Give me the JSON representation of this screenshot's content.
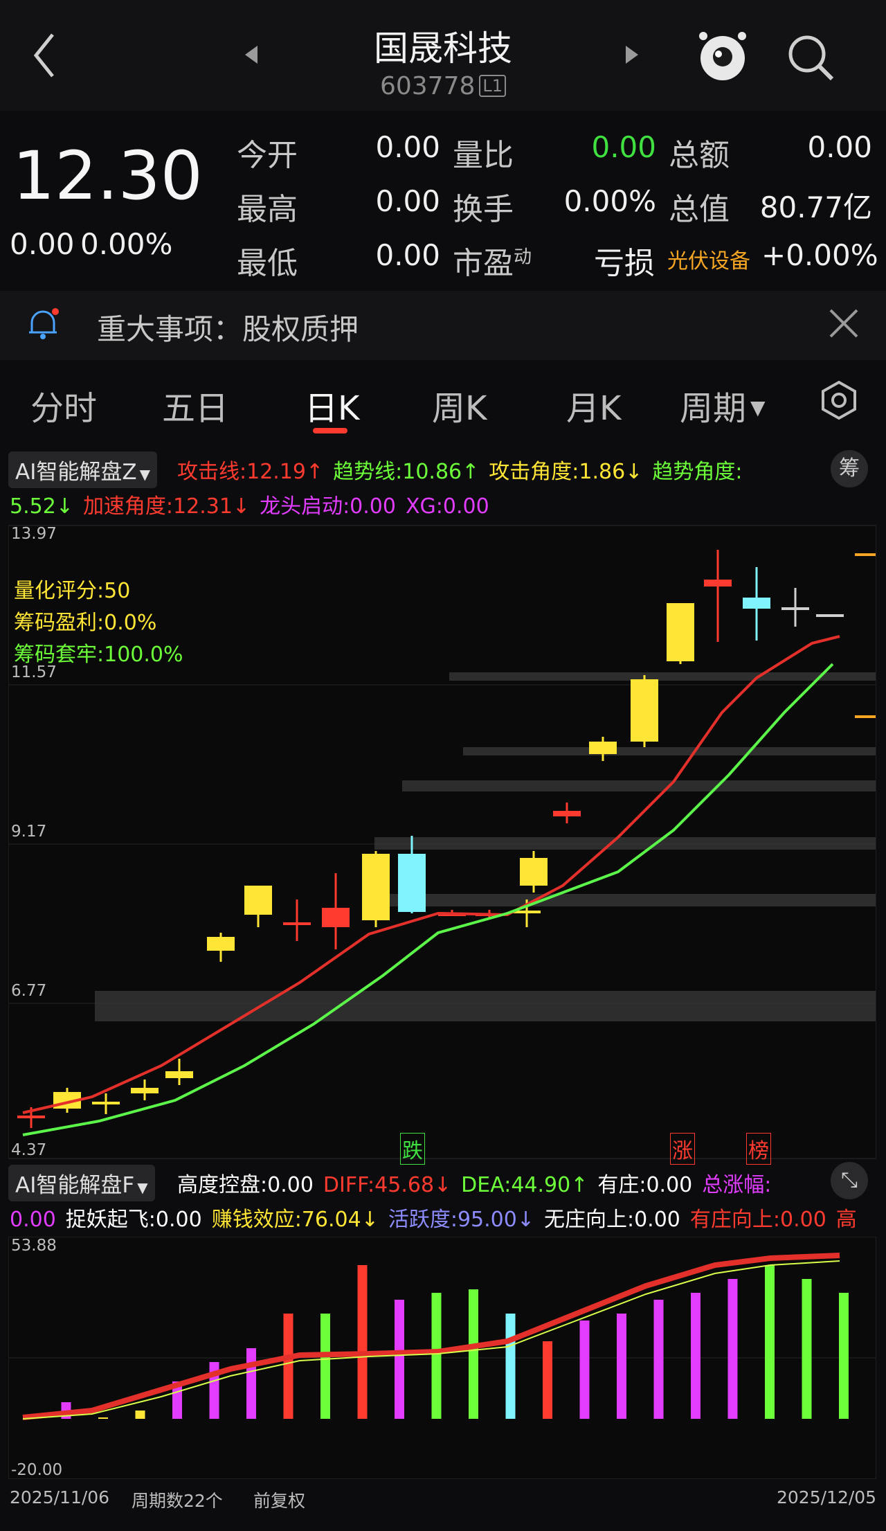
{
  "header": {
    "title": "国晟科技",
    "code": "603778",
    "level_badge": "L1"
  },
  "quote": {
    "price": "12.30",
    "change": "0.00",
    "change_pct": "0.00%",
    "rows": [
      {
        "l1": "今开",
        "v1": "0.00",
        "l2": "量比",
        "v2": "0.00",
        "l3": "总额",
        "v3": "0.00"
      },
      {
        "l1": "最高",
        "v1": "0.00",
        "l2": "换手",
        "v2": "0.00%",
        "l3": "总值",
        "v3": "80.77亿"
      },
      {
        "l1": "最低",
        "v1": "0.00",
        "l2": "市盈",
        "v2": "",
        "l3": "亏损",
        "v3": "+0.00%"
      }
    ],
    "pe_sup": "动",
    "sector": "光伏设备"
  },
  "notice": {
    "text": "重大事项：股权质押"
  },
  "tabs": [
    "分时",
    "五日",
    "日K",
    "周K",
    "月K",
    "周期"
  ],
  "main_indicator": {
    "name": "AI智能解盘Z",
    "line1": [
      {
        "t": "攻击线:",
        "v": "12.19",
        "arrow": "↑",
        "c": "#ff3b30"
      },
      {
        "t": "趋势线:",
        "v": "10.86",
        "arrow": "↑",
        "c": "#6cff3a"
      },
      {
        "t": "攻击角度:",
        "v": "1.86",
        "arrow": "↓",
        "c": "#ffe535"
      },
      {
        "t": "趋势角度:",
        "v": "",
        "arrow": "",
        "c": "#6cff3a"
      }
    ],
    "line2": [
      {
        "t": "",
        "v": "5.52",
        "arrow": "↓",
        "c": "#6cff3a"
      },
      {
        "t": "加速角度:",
        "v": "12.31",
        "arrow": "↓",
        "c": "#ff3b30"
      },
      {
        "t": "龙头启动:",
        "v": "0.00",
        "arrow": "",
        "c": "#e23dff"
      },
      {
        "t": "XG:",
        "v": "0.00",
        "arrow": "",
        "c": "#e23dff"
      }
    ],
    "chip_button": "筹"
  },
  "kline": {
    "y_labels": [
      "13.97",
      "11.57",
      "9.17",
      "6.77",
      "4.37"
    ],
    "score_lines": [
      {
        "text": "量化评分:50",
        "c": "#ffe535"
      },
      {
        "text": "筹码盈利:0.0%",
        "c": "#ffe535"
      },
      {
        "text": "筹码套牢:100.0%",
        "c": "#6cff3a"
      }
    ],
    "bottom_tags": [
      "跌",
      "涨",
      "榜"
    ]
  },
  "sub_indicator": {
    "name": "AI智能解盘F",
    "line1": [
      {
        "t": "高度控盘:",
        "v": "0.00",
        "arrow": "",
        "c": "#ffffff"
      },
      {
        "t": "DIFF:",
        "v": "45.68",
        "arrow": "↓",
        "c": "#ff3b30"
      },
      {
        "t": "DEA:",
        "v": "44.90",
        "arrow": "↑",
        "c": "#6cff3a"
      },
      {
        "t": "有庄:",
        "v": "0.00",
        "arrow": "",
        "c": "#ffffff"
      },
      {
        "t": "总涨幅:",
        "v": "",
        "arrow": "",
        "c": "#e23dff"
      }
    ],
    "line2": [
      {
        "t": "",
        "v": "0.00",
        "arrow": "",
        "c": "#e23dff"
      },
      {
        "t": "捉妖起飞:",
        "v": "0.00",
        "arrow": "",
        "c": "#ffffff"
      },
      {
        "t": "赚钱效应:",
        "v": "76.04",
        "arrow": "↓",
        "c": "#ffe535"
      },
      {
        "t": "活跃度:",
        "v": "95.00",
        "arrow": "↓",
        "c": "#8c8cff"
      },
      {
        "t": "无庄向上:",
        "v": "0.00",
        "arrow": "",
        "c": "#ffffff"
      },
      {
        "t": "有庄向上:",
        "v": "0.00",
        "arrow": "",
        "c": "#ff3b30"
      },
      {
        "t": "高",
        "v": "",
        "arrow": "",
        "c": "#ff3b30"
      }
    ],
    "y_labels": [
      "53.88",
      "-20.00"
    ]
  },
  "footer": {
    "start": "2025/11/06",
    "period": "周期数22个",
    "adjust": "前复权",
    "end": "2025/12/05"
  }
}
